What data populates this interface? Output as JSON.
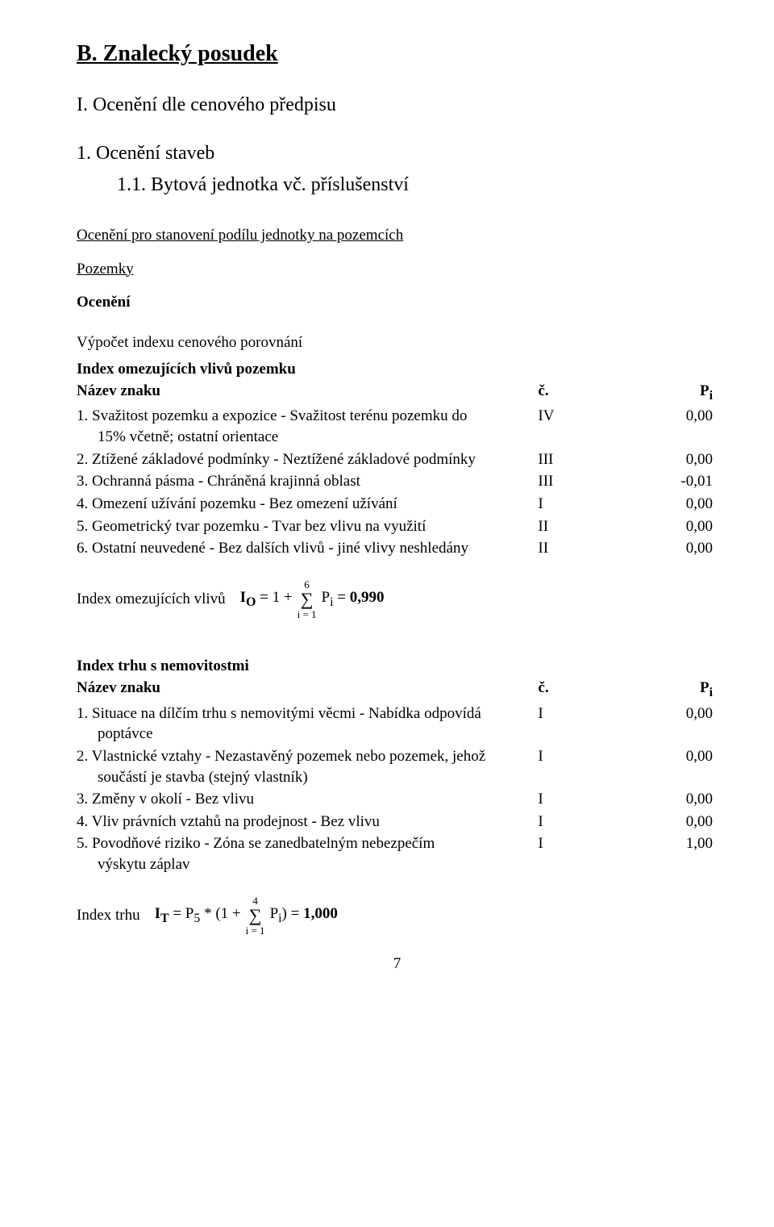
{
  "section_title": "B. Znalecký posudek",
  "h2": "I. Ocenění dle cenového předpisu",
  "h3": "1. Ocenění staveb",
  "h3_sub": "1.1. Bytová jednotka vč. příslušenství",
  "sub1": "Ocenění pro stanovení podílu jednotky na pozemcích",
  "sub2": "Pozemky",
  "sub3": "Ocenění",
  "table1": {
    "title": "Výpočet indexu cenového porovnání",
    "subtitle": "Index omezujících vlivů pozemku",
    "hdr_name": "Název znaku",
    "hdr_c": "č.",
    "hdr_p": "P",
    "hdr_p_sub": "i",
    "rows": [
      {
        "name_a": "1. Svažitost pozemku a expozice - Svažitost terénu pozemku do",
        "name_b": "15% včetně; ostatní orientace",
        "c": "IV",
        "p": "0,00"
      },
      {
        "name_a": "2. Ztížené základové podmínky - Neztížené základové podmínky",
        "name_b": "",
        "c": "III",
        "p": "0,00"
      },
      {
        "name_a": "3. Ochranná pásma - Chráněná krajinná oblast",
        "name_b": "",
        "c": "III",
        "p": "-0,01"
      },
      {
        "name_a": "4. Omezení užívání pozemku - Bez omezení užívání",
        "name_b": "",
        "c": "I",
        "p": "0,00"
      },
      {
        "name_a": "5. Geometrický tvar pozemku - Tvar bez vlivu na využití",
        "name_b": "",
        "c": "II",
        "p": "0,00"
      },
      {
        "name_a": "6. Ostatní neuvedené - Bez dalších vlivů - jiné vlivy neshledány",
        "name_b": "",
        "c": "II",
        "p": "0,00"
      }
    ],
    "formula_label": "Index omezujících vlivů",
    "formula_sym": "I",
    "formula_sym_sub": "O",
    "formula_mid": " = 1 + ",
    "sigma_top": "6",
    "sigma": "∑",
    "sigma_bot": "i = 1",
    "formula_tail_a": "P",
    "formula_tail_sub": "i",
    "formula_tail_b": " = ",
    "formula_result": "0,990"
  },
  "table2": {
    "title": "Index trhu s nemovitostmi",
    "hdr_name": "Název znaku",
    "hdr_c": "č.",
    "hdr_p": "P",
    "hdr_p_sub": "i",
    "rows": [
      {
        "name_a": "1. Situace na dílčím trhu s nemovitými věcmi - Nabídka odpovídá",
        "name_b": "poptávce",
        "c": "I",
        "p": "0,00"
      },
      {
        "name_a": "2. Vlastnické vztahy - Nezastavěný pozemek nebo pozemek, jehož",
        "name_b": "součástí je stavba (stejný vlastník)",
        "c": "I",
        "p": "0,00"
      },
      {
        "name_a": "3. Změny v okolí - Bez vlivu",
        "name_b": "",
        "c": "I",
        "p": "0,00"
      },
      {
        "name_a": "4. Vliv právních vztahů na prodejnost - Bez vlivu",
        "name_b": "",
        "c": "I",
        "p": "0,00"
      },
      {
        "name_a": "5. Povodňové riziko - Zóna se zanedbatelným nebezpečím",
        "name_b": "výskytu záplav",
        "c": "I",
        "p": "1,00"
      }
    ],
    "formula_label": "Index trhu",
    "formula_sym": "I",
    "formula_sym_sub": "T",
    "formula_mid_a": " = P",
    "formula_mid_sub": "5",
    "formula_mid_b": " * (1 + ",
    "sigma_top": "4",
    "sigma": "∑",
    "sigma_bot": "i = 1",
    "formula_tail_a": "P",
    "formula_tail_sub": "i",
    "formula_tail_b": ") = ",
    "formula_result": "1,000"
  },
  "page_number": "7"
}
